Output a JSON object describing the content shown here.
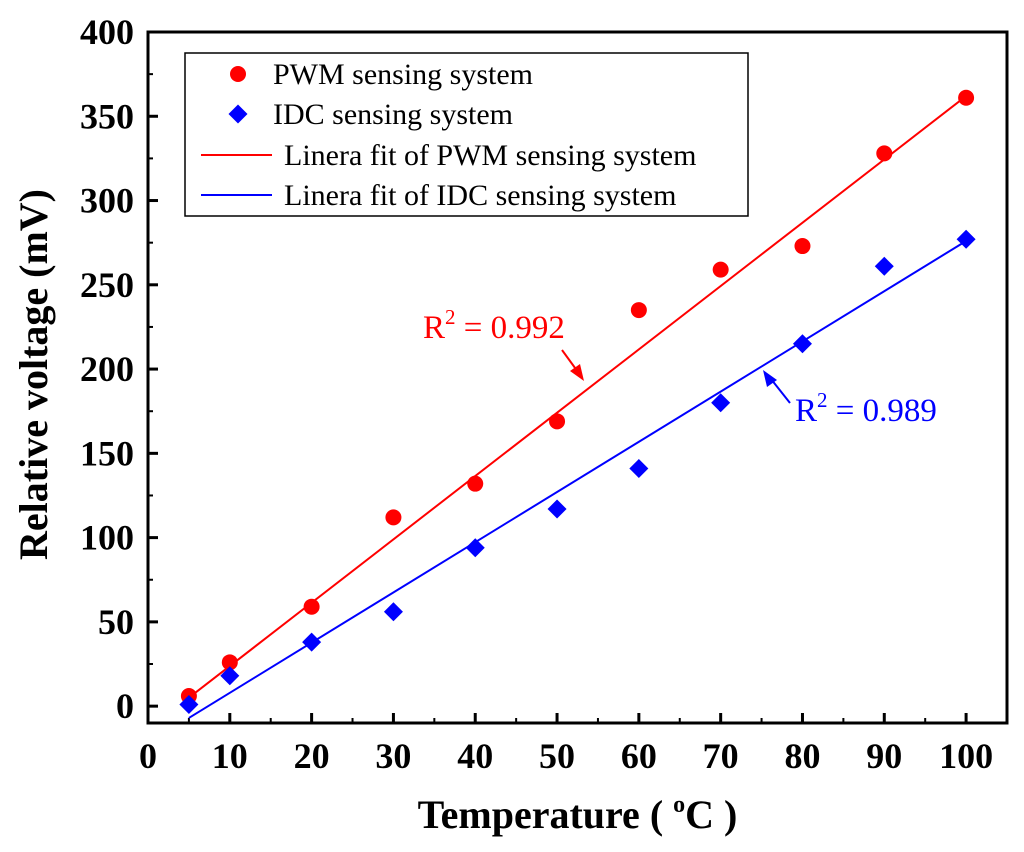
{
  "chart_data": {
    "type": "scatter",
    "xlabel_parts": [
      "Temperature ( ",
      "o",
      "C )"
    ],
    "ylabel": "Relative voltage (mV)",
    "xlim": [
      0,
      105
    ],
    "ylim": [
      -10,
      400
    ],
    "xticks": [
      0,
      10,
      20,
      30,
      40,
      50,
      60,
      70,
      80,
      90,
      100
    ],
    "yticks": [
      0,
      50,
      100,
      150,
      200,
      250,
      300,
      350,
      400
    ],
    "grid": false,
    "legend_position": "top-left",
    "series": [
      {
        "name": "PWM sensing system",
        "marker": "circle",
        "color": "#ff0000",
        "x": [
          5,
          10,
          20,
          30,
          40,
          50,
          60,
          70,
          80,
          90,
          100
        ],
        "y": [
          6,
          26,
          59,
          112,
          132,
          169,
          235,
          259,
          273,
          328,
          361
        ]
      },
      {
        "name": "IDC sensing system",
        "marker": "diamond",
        "color": "#0000ff",
        "x": [
          5,
          10,
          20,
          30,
          40,
          50,
          60,
          70,
          80,
          90,
          100
        ],
        "y": [
          1,
          18,
          38,
          56,
          94,
          117,
          141,
          180,
          215,
          261,
          277
        ]
      }
    ],
    "fits": [
      {
        "name": "Linera fit of PWM sensing system",
        "color": "#ff0000",
        "x": [
          5,
          100
        ],
        "y": [
          5,
          362
        ]
      },
      {
        "name": "Linera fit of IDC sensing system",
        "color": "#0000ff",
        "x": [
          5,
          100
        ],
        "y": [
          -7,
          276
        ]
      }
    ],
    "annotations": [
      {
        "base": "R",
        "sup": "2",
        "rest": " = 0.992",
        "color": "#ff0000"
      },
      {
        "base": "R",
        "sup": "2",
        "rest": " = 0.989",
        "color": "#0000ff"
      }
    ]
  }
}
